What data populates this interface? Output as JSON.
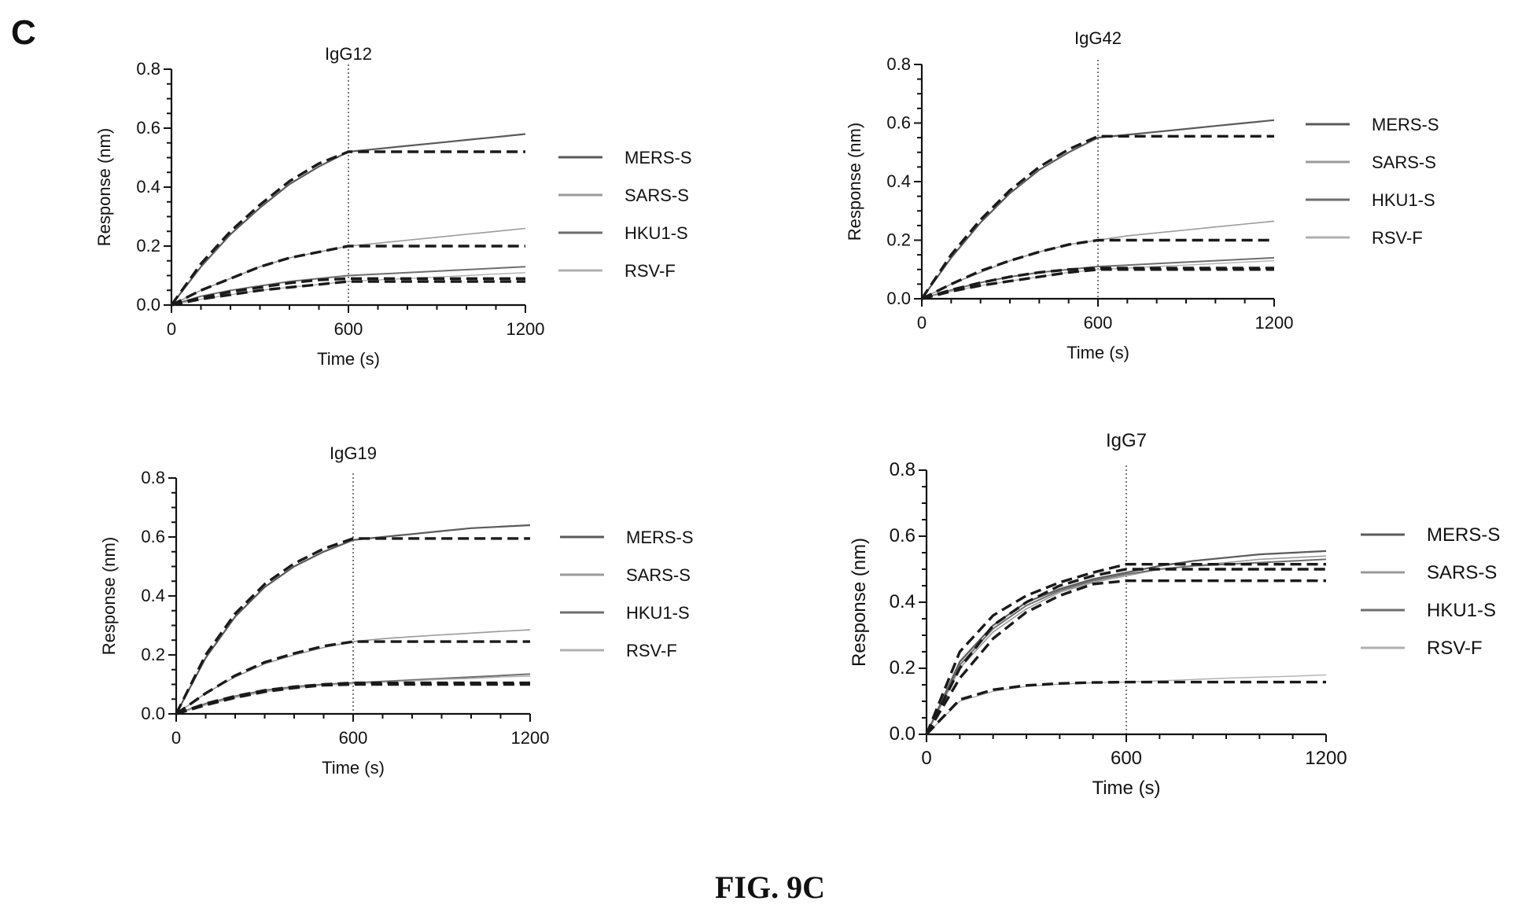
{
  "panel_letter": "C",
  "figure_caption": "FIG. 9C",
  "colors": {
    "fit": "#1a1a1a",
    "mers_s": "#5a5a5a",
    "sars_s": "#9a9a9a",
    "hku1_s": "#6e6e6e",
    "rsv_f": "#b0b0b0"
  },
  "chart_data": [
    {
      "type": "line",
      "title": "IgG12",
      "xlabel": "Time (s)",
      "ylabel": "Response (nm)",
      "xlim": [
        0,
        1200
      ],
      "ylim": [
        0,
        0.8
      ],
      "xticks": [
        "0",
        "600",
        "1200"
      ],
      "yticks": [
        "0.0",
        "0.2",
        "0.4",
        "0.6",
        "0.8"
      ],
      "dissociation_start": 600,
      "legend_position": "right",
      "legend": [
        "MERS-S",
        "SARS-S",
        "HKU1-S",
        "RSV-F"
      ],
      "x": [
        0,
        100,
        200,
        300,
        400,
        500,
        600,
        700,
        800,
        900,
        1000,
        1100,
        1200
      ],
      "series": [
        {
          "name": "MERS-S",
          "values": [
            0,
            0.13,
            0.24,
            0.33,
            0.41,
            0.47,
            0.52,
            0.53,
            0.54,
            0.55,
            0.56,
            0.57,
            0.58
          ],
          "fit": [
            0,
            0.14,
            0.25,
            0.34,
            0.42,
            0.48,
            0.52,
            0.52,
            0.52,
            0.52,
            0.52,
            0.52,
            0.52
          ]
        },
        {
          "name": "SARS-S",
          "values": [
            0,
            0.05,
            0.09,
            0.13,
            0.16,
            0.18,
            0.2,
            0.21,
            0.22,
            0.23,
            0.24,
            0.25,
            0.26
          ],
          "fit": [
            0,
            0.05,
            0.09,
            0.13,
            0.16,
            0.18,
            0.2,
            0.2,
            0.2,
            0.2,
            0.2,
            0.2,
            0.2
          ]
        },
        {
          "name": "HKU1-S",
          "values": [
            0,
            0.03,
            0.05,
            0.065,
            0.08,
            0.09,
            0.1,
            0.105,
            0.11,
            0.115,
            0.12,
            0.125,
            0.13
          ],
          "fit": [
            0,
            0.025,
            0.045,
            0.06,
            0.075,
            0.085,
            0.09,
            0.09,
            0.09,
            0.09,
            0.09,
            0.09,
            0.09
          ]
        },
        {
          "name": "RSV-F",
          "values": [
            0,
            0.02,
            0.035,
            0.05,
            0.06,
            0.07,
            0.08,
            0.085,
            0.09,
            0.095,
            0.1,
            0.105,
            0.11
          ],
          "fit": [
            0,
            0.02,
            0.035,
            0.05,
            0.06,
            0.07,
            0.08,
            0.08,
            0.08,
            0.08,
            0.08,
            0.08,
            0.08
          ]
        }
      ]
    },
    {
      "type": "line",
      "title": "IgG42",
      "xlabel": "Time (s)",
      "ylabel": "Response (nm)",
      "xlim": [
        0,
        1200
      ],
      "ylim": [
        0,
        0.8
      ],
      "xticks": [
        "0",
        "600",
        "1200"
      ],
      "yticks": [
        "0.0",
        "0.2",
        "0.4",
        "0.6",
        "0.8"
      ],
      "dissociation_start": 600,
      "legend_position": "right",
      "legend": [
        "MERS-S",
        "SARS-S",
        "HKU1-S",
        "RSV-F"
      ],
      "x": [
        0,
        100,
        200,
        300,
        400,
        500,
        600,
        700,
        800,
        900,
        1000,
        1100,
        1200
      ],
      "series": [
        {
          "name": "MERS-S",
          "values": [
            0,
            0.14,
            0.26,
            0.36,
            0.44,
            0.5,
            0.55,
            0.56,
            0.57,
            0.58,
            0.59,
            0.6,
            0.61
          ],
          "fit": [
            0,
            0.15,
            0.27,
            0.37,
            0.45,
            0.51,
            0.555,
            0.555,
            0.555,
            0.555,
            0.555,
            0.555,
            0.555
          ]
        },
        {
          "name": "SARS-S",
          "values": [
            0,
            0.05,
            0.09,
            0.13,
            0.16,
            0.185,
            0.2,
            0.215,
            0.225,
            0.235,
            0.245,
            0.255,
            0.265
          ],
          "fit": [
            0,
            0.05,
            0.095,
            0.13,
            0.16,
            0.185,
            0.2,
            0.2,
            0.2,
            0.2,
            0.2,
            0.2,
            0.2
          ]
        },
        {
          "name": "HKU1-S",
          "values": [
            0,
            0.03,
            0.055,
            0.075,
            0.09,
            0.1,
            0.11,
            0.115,
            0.12,
            0.125,
            0.13,
            0.135,
            0.14
          ],
          "fit": [
            0,
            0.03,
            0.055,
            0.075,
            0.09,
            0.1,
            0.105,
            0.105,
            0.105,
            0.105,
            0.105,
            0.105,
            0.105
          ]
        },
        {
          "name": "RSV-F",
          "values": [
            0,
            0.025,
            0.045,
            0.06,
            0.075,
            0.09,
            0.1,
            0.105,
            0.11,
            0.115,
            0.12,
            0.125,
            0.13
          ],
          "fit": [
            0,
            0.025,
            0.045,
            0.06,
            0.075,
            0.09,
            0.1,
            0.1,
            0.1,
            0.1,
            0.1,
            0.1,
            0.1
          ]
        }
      ]
    },
    {
      "type": "line",
      "title": "IgG19",
      "xlabel": "Time (s)",
      "ylabel": "Response (nm)",
      "xlim": [
        0,
        1200
      ],
      "ylim": [
        0,
        0.8
      ],
      "xticks": [
        "0",
        "600",
        "1200"
      ],
      "yticks": [
        "0.0",
        "0.2",
        "0.4",
        "0.6",
        "0.8"
      ],
      "dissociation_start": 600,
      "legend_position": "right",
      "legend": [
        "MERS-S",
        "SARS-S",
        "HKU1-S",
        "RSV-F"
      ],
      "x": [
        0,
        100,
        200,
        300,
        400,
        500,
        600,
        700,
        800,
        900,
        1000,
        1100,
        1200
      ],
      "series": [
        {
          "name": "MERS-S",
          "values": [
            0,
            0.19,
            0.33,
            0.43,
            0.5,
            0.55,
            0.59,
            0.6,
            0.61,
            0.62,
            0.63,
            0.635,
            0.64
          ],
          "fit": [
            0,
            0.2,
            0.34,
            0.44,
            0.51,
            0.56,
            0.595,
            0.595,
            0.595,
            0.595,
            0.595,
            0.595,
            0.595
          ]
        },
        {
          "name": "SARS-S",
          "values": [
            0,
            0.07,
            0.125,
            0.17,
            0.2,
            0.225,
            0.245,
            0.255,
            0.262,
            0.268,
            0.274,
            0.28,
            0.285
          ],
          "fit": [
            0,
            0.07,
            0.13,
            0.175,
            0.205,
            0.23,
            0.245,
            0.245,
            0.245,
            0.245,
            0.245,
            0.245,
            0.245
          ]
        },
        {
          "name": "HKU1-S",
          "values": [
            0,
            0.035,
            0.06,
            0.08,
            0.092,
            0.1,
            0.105,
            0.11,
            0.115,
            0.12,
            0.125,
            0.13,
            0.135
          ],
          "fit": [
            0,
            0.035,
            0.06,
            0.08,
            0.092,
            0.1,
            0.105,
            0.105,
            0.105,
            0.105,
            0.105,
            0.105,
            0.105
          ]
        },
        {
          "name": "RSV-F",
          "values": [
            0,
            0.03,
            0.055,
            0.075,
            0.088,
            0.097,
            0.102,
            0.107,
            0.112,
            0.117,
            0.12,
            0.125,
            0.128
          ],
          "fit": [
            0,
            0.03,
            0.055,
            0.075,
            0.088,
            0.097,
            0.1,
            0.1,
            0.1,
            0.1,
            0.1,
            0.1,
            0.1
          ]
        }
      ]
    },
    {
      "type": "line",
      "title": "IgG7",
      "xlabel": "Time (s)",
      "ylabel": "Response (nm)",
      "xlim": [
        0,
        1200
      ],
      "ylim": [
        0,
        0.8
      ],
      "xticks": [
        "0",
        "600",
        "1200"
      ],
      "yticks": [
        "0.0",
        "0.2",
        "0.4",
        "0.6",
        "0.8"
      ],
      "dissociation_start": 600,
      "legend_position": "right",
      "legend": [
        "MERS-S",
        "SARS-S",
        "HKU1-S",
        "RSV-F"
      ],
      "x": [
        0,
        100,
        200,
        300,
        400,
        500,
        600,
        700,
        800,
        900,
        1000,
        1100,
        1200
      ],
      "series": [
        {
          "name": "MERS-S",
          "values": [
            0,
            0.22,
            0.33,
            0.4,
            0.44,
            0.47,
            0.49,
            0.51,
            0.525,
            0.535,
            0.545,
            0.55,
            0.555
          ],
          "fit": [
            0,
            0.25,
            0.36,
            0.42,
            0.46,
            0.49,
            0.515,
            0.515,
            0.515,
            0.515,
            0.515,
            0.515,
            0.515
          ]
        },
        {
          "name": "SARS-S",
          "values": [
            0,
            0.2,
            0.31,
            0.38,
            0.43,
            0.46,
            0.48,
            0.5,
            0.51,
            0.52,
            0.53,
            0.535,
            0.54
          ],
          "fit": [
            0,
            0.17,
            0.29,
            0.37,
            0.42,
            0.455,
            0.465,
            0.465,
            0.465,
            0.465,
            0.465,
            0.465,
            0.465
          ]
        },
        {
          "name": "HKU1-S",
          "values": [
            0,
            0.21,
            0.32,
            0.39,
            0.435,
            0.465,
            0.485,
            0.5,
            0.51,
            0.515,
            0.52,
            0.525,
            0.53
          ],
          "fit": [
            0,
            0.2,
            0.33,
            0.4,
            0.45,
            0.48,
            0.5,
            0.5,
            0.5,
            0.5,
            0.5,
            0.5,
            0.5
          ]
        },
        {
          "name": "RSV-F",
          "values": [
            0,
            0.1,
            0.13,
            0.145,
            0.152,
            0.156,
            0.158,
            0.162,
            0.166,
            0.17,
            0.173,
            0.176,
            0.18
          ],
          "fit": [
            0,
            0.105,
            0.135,
            0.148,
            0.154,
            0.157,
            0.158,
            0.158,
            0.158,
            0.158,
            0.158,
            0.158,
            0.158
          ]
        }
      ]
    }
  ]
}
